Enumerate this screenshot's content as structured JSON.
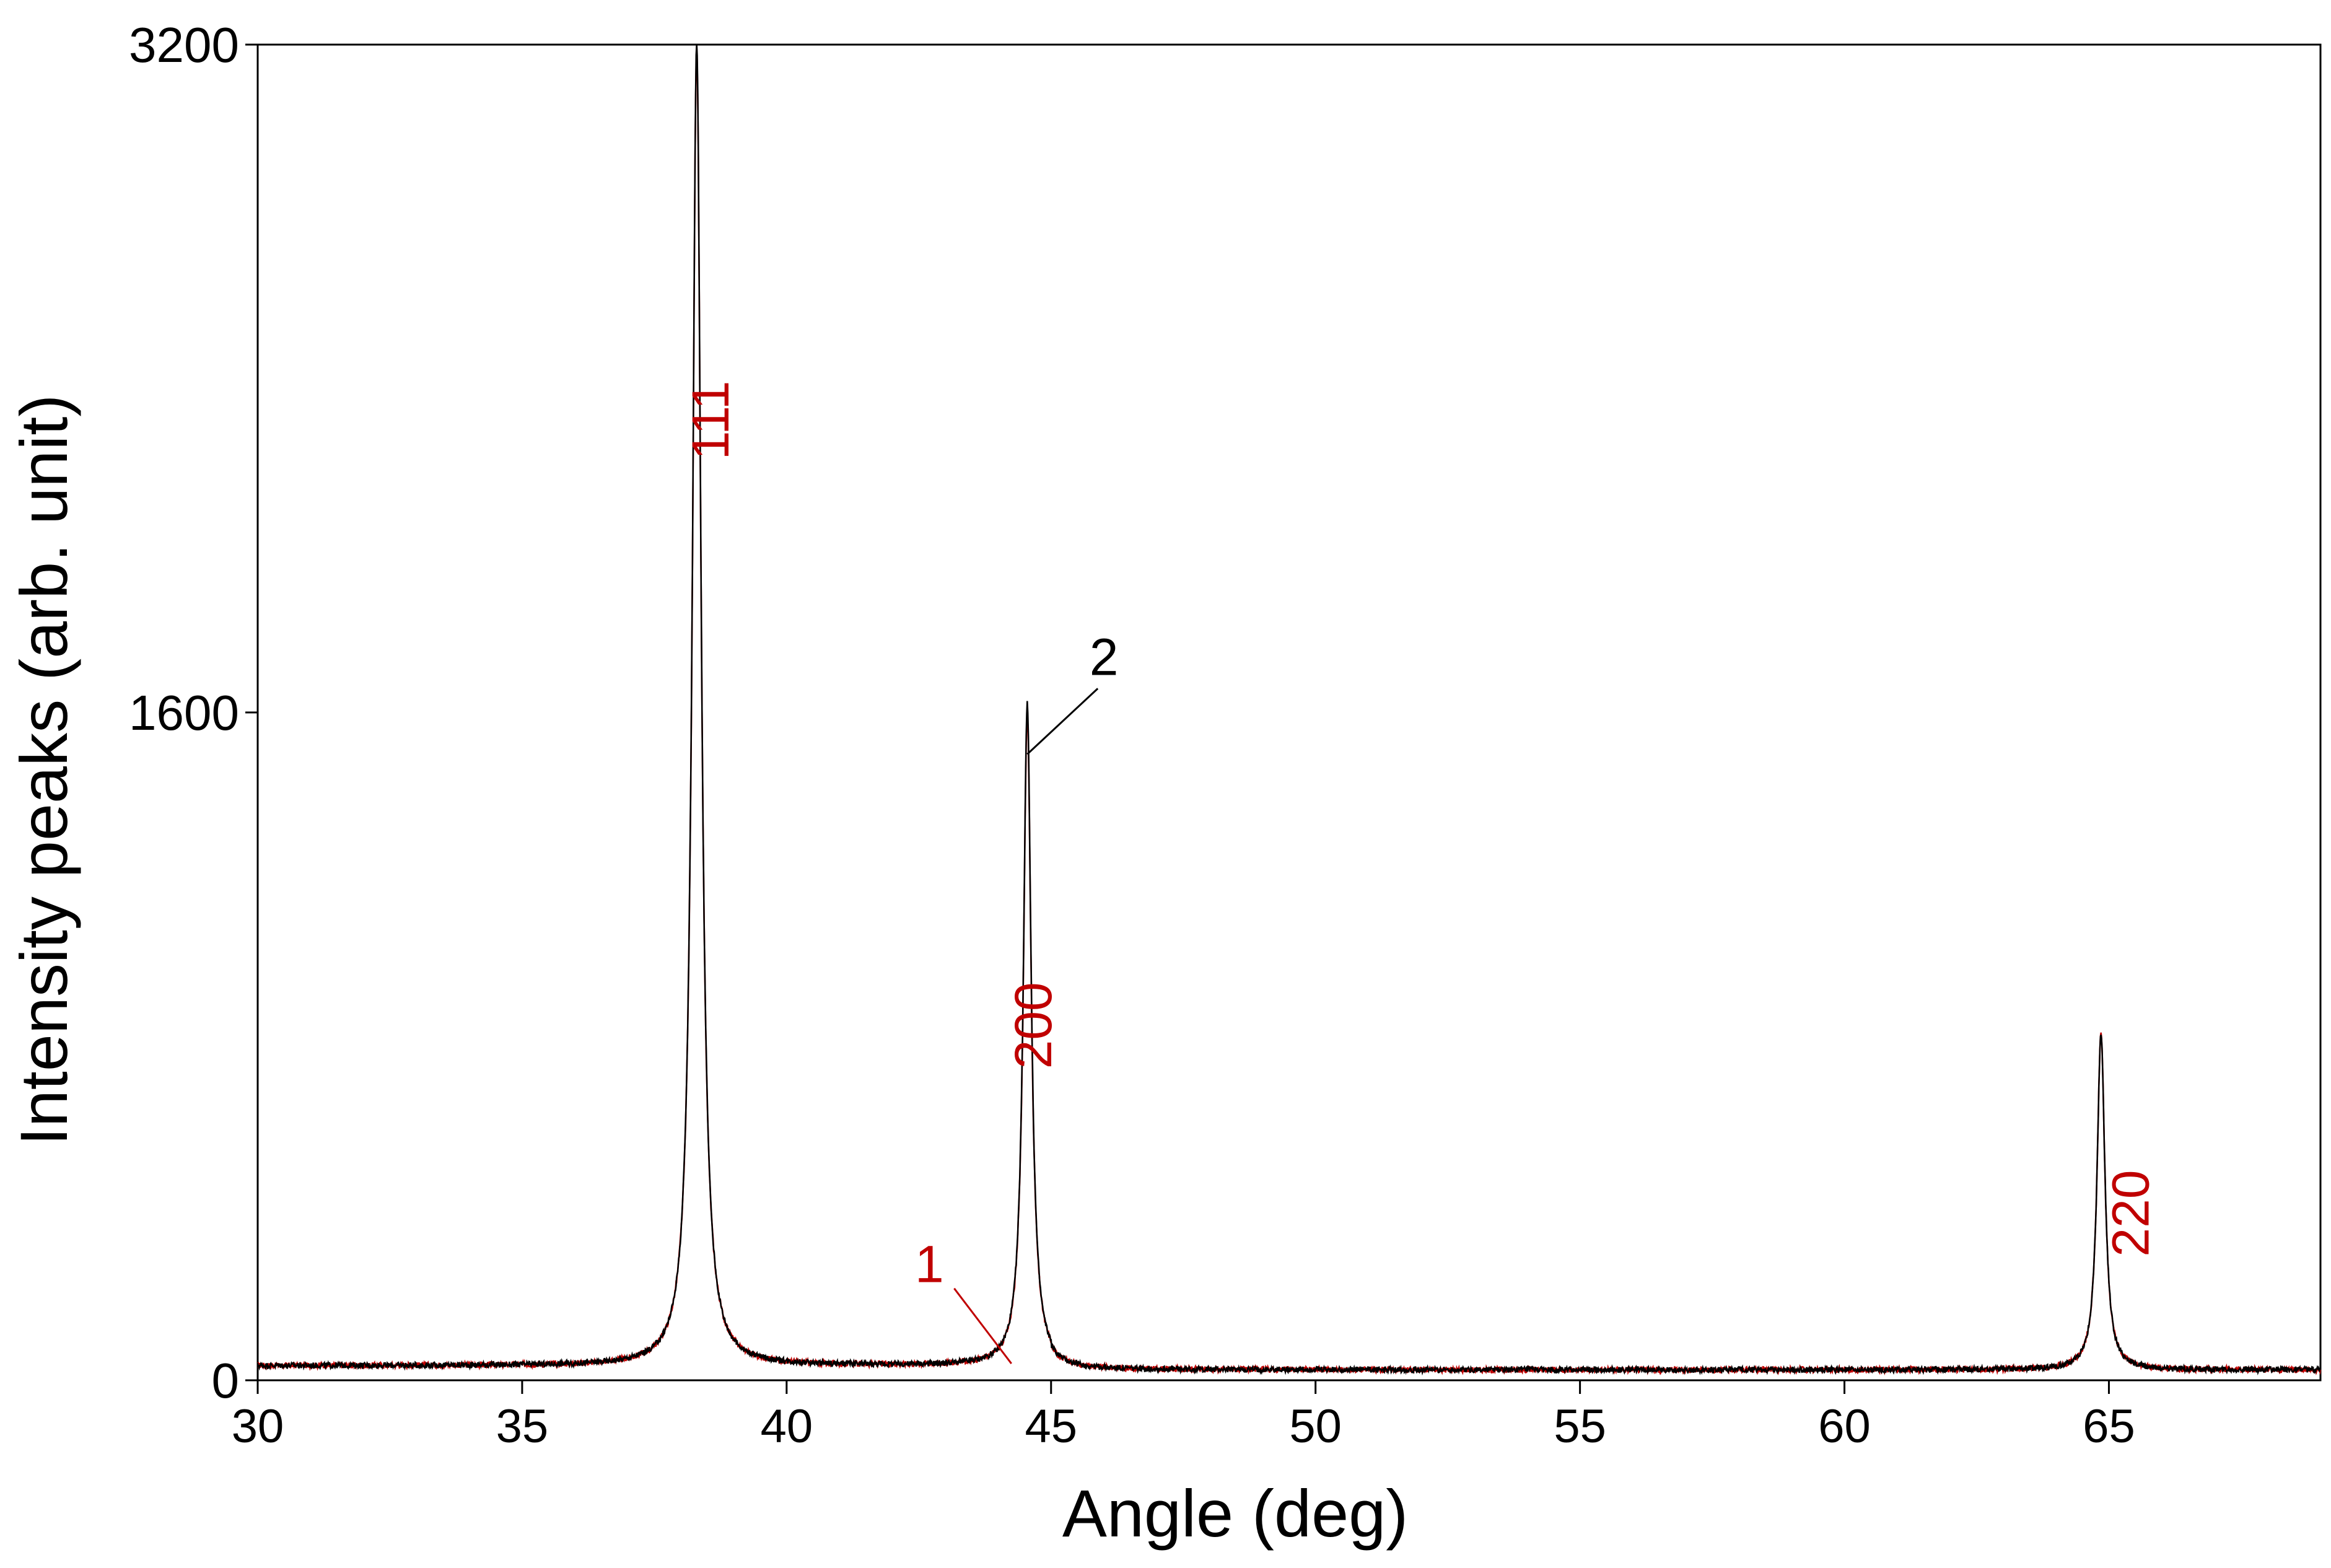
{
  "chart_data": {
    "type": "line",
    "title": "",
    "xlabel": "Angle (deg)",
    "ylabel": "Intensity peaks (arb. unit)",
    "xlim": [
      30,
      69
    ],
    "ylim": [
      0,
      3200
    ],
    "x_ticks": [
      30,
      35,
      40,
      45,
      50,
      55,
      60,
      65
    ],
    "y_ticks": [
      0,
      1600,
      3200
    ],
    "grid": false,
    "legend": "none",
    "colors": {
      "series_1": "#c00000",
      "series_2": "#000000",
      "peak_label": "#c00000",
      "series_2_label": "#000000",
      "axis": "#000000"
    },
    "baseline": 25,
    "series": [
      {
        "peaks": [
          {
            "x": 38.3,
            "y": 3180,
            "width": 0.1
          },
          {
            "x": 44.55,
            "y": 1590,
            "width": 0.09
          },
          {
            "x": 64.85,
            "y": 830,
            "width": 0.09
          }
        ]
      },
      {
        "peaks": [
          {
            "x": 38.3,
            "y": 3195,
            "width": 0.1
          },
          {
            "x": 44.55,
            "y": 1610,
            "width": 0.09
          },
          {
            "x": 64.85,
            "y": 830,
            "width": 0.09
          }
        ]
      }
    ],
    "peak_labels": [
      {
        "text": "111",
        "x": 38.9,
        "y": 2300
      },
      {
        "text": "200",
        "x": 45.0,
        "y": 850
      },
      {
        "text": "220",
        "x": 65.75,
        "y": 400
      }
    ],
    "series_labels": [
      {
        "text": "1",
        "x": 42.7,
        "y": 235
      },
      {
        "text": "2",
        "x": 46.0,
        "y": 1690
      }
    ]
  }
}
